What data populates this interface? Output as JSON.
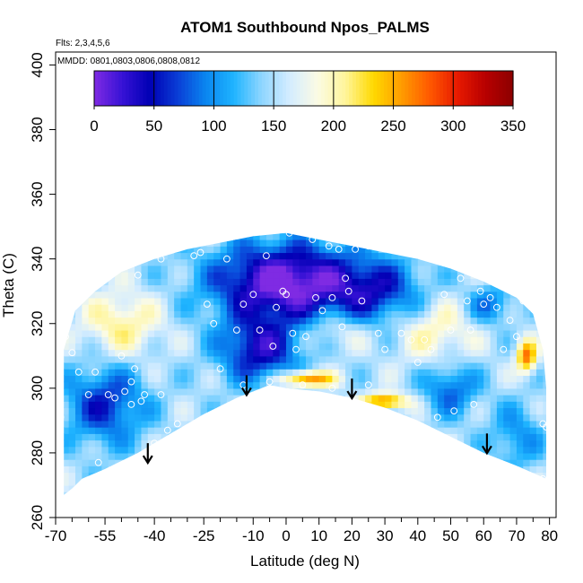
{
  "chart_data": {
    "type": "heatmap",
    "title": "ATOM1 Southbound Npos_PALMS",
    "flights_note": "Flts: 2,3,4,5,6",
    "dates_note": "MMDD: 0801,0803,0806,0808,0812",
    "xlabel": "Latitude (deg N)",
    "ylabel": "Theta (C)",
    "xlim": [
      -70,
      82
    ],
    "ylim": [
      260,
      404
    ],
    "x_ticks": [
      -70,
      -55,
      -40,
      -25,
      -10,
      0,
      10,
      20,
      30,
      40,
      50,
      60,
      70,
      80
    ],
    "x_tick_labels": [
      "-70",
      "-55",
      "-40",
      "-25",
      "-10",
      "0",
      "10",
      "20",
      "30",
      "40",
      "50",
      "60",
      "70",
      "80"
    ],
    "x_minor_ticks": [
      -65,
      -60,
      -50,
      -45,
      -35,
      -30,
      -20,
      -15,
      -5,
      5,
      15,
      25,
      35,
      45,
      55,
      65,
      75
    ],
    "y_ticks": [
      260,
      280,
      300,
      320,
      340,
      360,
      380,
      400
    ],
    "y_tick_labels": [
      "260",
      "280",
      "300",
      "320",
      "340",
      "360",
      "380",
      "400"
    ],
    "colorbar": {
      "min": 0,
      "max": 350,
      "ticks": [
        0,
        50,
        100,
        150,
        200,
        250,
        300,
        350
      ],
      "tick_labels": [
        "0",
        "50",
        "100",
        "150",
        "200",
        "250",
        "300",
        "350"
      ],
      "colors": [
        "#7f2be3",
        "#3712d6",
        "#0000b4",
        "#0a3ed6",
        "#0a86f0",
        "#1fb4ff",
        "#8fd6ff",
        "#d4ecff",
        "#fbfbe4",
        "#fff59a",
        "#ffd900",
        "#ff9c00",
        "#ff5a00",
        "#e81a00",
        "#b80000",
        "#8c0000"
      ]
    },
    "arrows": [
      {
        "lat": -42,
        "theta": 283
      },
      {
        "lat": -12,
        "theta": 304
      },
      {
        "lat": 20,
        "theta": 303
      },
      {
        "lat": 61,
        "theta": 286
      }
    ],
    "envelope": [
      [
        -67.5,
        267
      ],
      [
        -67.5,
        312
      ],
      [
        -64,
        324
      ],
      [
        -58,
        330
      ],
      [
        -50,
        336
      ],
      [
        -40,
        340
      ],
      [
        -30,
        343
      ],
      [
        -20,
        345
      ],
      [
        -10,
        347
      ],
      [
        0,
        348
      ],
      [
        10,
        346
      ],
      [
        20,
        344
      ],
      [
        30,
        342
      ],
      [
        40,
        340
      ],
      [
        50,
        337
      ],
      [
        60,
        333
      ],
      [
        70,
        328
      ],
      [
        75,
        323
      ],
      [
        78,
        312
      ],
      [
        79,
        300
      ],
      [
        79,
        288
      ],
      [
        79,
        272
      ],
      [
        70,
        276
      ],
      [
        60,
        280
      ],
      [
        50,
        285
      ],
      [
        40,
        290
      ],
      [
        30,
        294
      ],
      [
        20,
        297
      ],
      [
        10,
        299
      ],
      [
        0,
        300
      ],
      [
        -5,
        301
      ],
      [
        -10,
        299
      ],
      [
        -15,
        297
      ],
      [
        -25,
        292
      ],
      [
        -35,
        286
      ],
      [
        -45,
        280
      ],
      [
        -55,
        275
      ],
      [
        -62,
        272
      ],
      [
        -65,
        269
      ]
    ],
    "sample_points": [
      [
        -68.5,
        291
      ],
      [
        -67,
        316
      ],
      [
        -65,
        311
      ],
      [
        -63,
        305
      ],
      [
        -60,
        298
      ],
      [
        -57,
        277
      ],
      [
        -58,
        305
      ],
      [
        -54,
        298
      ],
      [
        -52,
        297
      ],
      [
        -50,
        310
      ],
      [
        -49,
        299
      ],
      [
        -47,
        295
      ],
      [
        -47,
        302
      ],
      [
        -46,
        306
      ],
      [
        -44,
        296
      ],
      [
        -43,
        298
      ],
      [
        -40,
        283
      ],
      [
        -38,
        298
      ],
      [
        -36,
        287
      ],
      [
        -33,
        289
      ],
      [
        -38,
        340
      ],
      [
        -45,
        335
      ],
      [
        -28,
        341
      ],
      [
        -26,
        342
      ],
      [
        -24,
        326
      ],
      [
        -22,
        320
      ],
      [
        -20,
        306
      ],
      [
        -18,
        340
      ],
      [
        -15,
        318
      ],
      [
        -13,
        326
      ],
      [
        -10,
        329
      ],
      [
        -8,
        318
      ],
      [
        -6,
        341
      ],
      [
        -4,
        313
      ],
      [
        -3,
        325
      ],
      [
        -1,
        330
      ],
      [
        0,
        329
      ],
      [
        1,
        348
      ],
      [
        2,
        317
      ],
      [
        3,
        312
      ],
      [
        6,
        316
      ],
      [
        8,
        346
      ],
      [
        9,
        328
      ],
      [
        11,
        324
      ],
      [
        13,
        344
      ],
      [
        14,
        328
      ],
      [
        16,
        343
      ],
      [
        17,
        319
      ],
      [
        18,
        334
      ],
      [
        19,
        330
      ],
      [
        21,
        343
      ],
      [
        23,
        327
      ],
      [
        25,
        344
      ],
      [
        28,
        317
      ],
      [
        30,
        312
      ],
      [
        32,
        343
      ],
      [
        35,
        317
      ],
      [
        38,
        315
      ],
      [
        40,
        308
      ],
      [
        42,
        315
      ],
      [
        44,
        312
      ],
      [
        46,
        291
      ],
      [
        48,
        329
      ],
      [
        50,
        318
      ],
      [
        51,
        293
      ],
      [
        53,
        334
      ],
      [
        55,
        327
      ],
      [
        56,
        318
      ],
      [
        57,
        295
      ],
      [
        59,
        330
      ],
      [
        60,
        326
      ],
      [
        62,
        328
      ],
      [
        64,
        325
      ],
      [
        66,
        312
      ],
      [
        68,
        321
      ],
      [
        70,
        316
      ],
      [
        72,
        327
      ],
      [
        78,
        289
      ],
      [
        79,
        288
      ],
      [
        78,
        272
      ],
      [
        -5,
        302
      ],
      [
        -13,
        301
      ],
      [
        5,
        301
      ],
      [
        14,
        300
      ],
      [
        25,
        301
      ]
    ]
  }
}
